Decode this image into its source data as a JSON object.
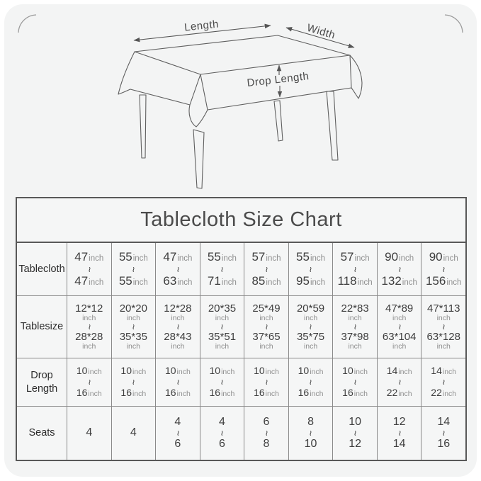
{
  "colors": {
    "page_bg": "#ffffff",
    "card_bg": "#f3f4f4",
    "line": "#5f5f5f",
    "border_dark": "#585858",
    "border_light": "#8a8a8a",
    "text": "#3e3e3e",
    "text_muted": "#8e8e8e",
    "title": "#4b4b4b"
  },
  "diagram": {
    "length_label": "Length",
    "width_label": "Width",
    "drop_length_label": "Drop Length"
  },
  "table": {
    "title": "Tablecloth Size Chart",
    "tilde": "~",
    "rows": [
      {
        "label": "Tablecloth",
        "cells": [
          {
            "top": "47",
            "top_unit": "inch",
            "bottom": "47",
            "bottom_unit": "inch"
          },
          {
            "top": "55",
            "top_unit": "inch",
            "bottom": "55",
            "bottom_unit": "inch"
          },
          {
            "top": "47",
            "top_unit": "inch",
            "bottom": "63",
            "bottom_unit": "inch"
          },
          {
            "top": "55",
            "top_unit": "inch",
            "bottom": "71",
            "bottom_unit": "inch"
          },
          {
            "top": "57",
            "top_unit": "inch",
            "bottom": "85",
            "bottom_unit": "inch"
          },
          {
            "top": "55",
            "top_unit": "inch",
            "bottom": "95",
            "bottom_unit": "inch"
          },
          {
            "top": "57",
            "top_unit": "inch",
            "bottom": "118",
            "bottom_unit": "inch"
          },
          {
            "top": "90",
            "top_unit": "inch",
            "bottom": "132",
            "bottom_unit": "inch"
          },
          {
            "top": "90",
            "top_unit": "inch",
            "bottom": "156",
            "bottom_unit": "inch"
          }
        ]
      },
      {
        "label": "Tablesize",
        "cells": [
          {
            "top": "12*12",
            "top_unit": "inch",
            "bottom": "28*28",
            "bottom_unit": "inch"
          },
          {
            "top": "20*20",
            "top_unit": "inch",
            "bottom": "35*35",
            "bottom_unit": "inch"
          },
          {
            "top": "12*28",
            "top_unit": "inch",
            "bottom": "28*43",
            "bottom_unit": "inch"
          },
          {
            "top": "20*35",
            "top_unit": "inch",
            "bottom": "35*51",
            "bottom_unit": "inch"
          },
          {
            "top": "25*49",
            "top_unit": "inch",
            "bottom": "37*65",
            "bottom_unit": "inch"
          },
          {
            "top": "20*59",
            "top_unit": "inch",
            "bottom": "35*75",
            "bottom_unit": "inch"
          },
          {
            "top": "22*83",
            "top_unit": "inch",
            "bottom": "37*98",
            "bottom_unit": "inch"
          },
          {
            "top": "47*89",
            "top_unit": "inch",
            "bottom": "63*104",
            "bottom_unit": "inch"
          },
          {
            "top": "47*113",
            "top_unit": "inch",
            "bottom": "63*128",
            "bottom_unit": "inch"
          }
        ]
      },
      {
        "label": "Drop Length",
        "cells": [
          {
            "top": "10",
            "top_unit": "inch",
            "bottom": "16",
            "bottom_unit": "inch"
          },
          {
            "top": "10",
            "top_unit": "inch",
            "bottom": "16",
            "bottom_unit": "inch"
          },
          {
            "top": "10",
            "top_unit": "inch",
            "bottom": "16",
            "bottom_unit": "inch"
          },
          {
            "top": "10",
            "top_unit": "inch",
            "bottom": "16",
            "bottom_unit": "inch"
          },
          {
            "top": "10",
            "top_unit": "inch",
            "bottom": "16",
            "bottom_unit": "inch"
          },
          {
            "top": "10",
            "top_unit": "inch",
            "bottom": "16",
            "bottom_unit": "inch"
          },
          {
            "top": "10",
            "top_unit": "inch",
            "bottom": "16",
            "bottom_unit": "inch"
          },
          {
            "top": "14",
            "top_unit": "inch",
            "bottom": "22",
            "bottom_unit": "inch"
          },
          {
            "top": "14",
            "top_unit": "inch",
            "bottom": "22",
            "bottom_unit": "inch"
          }
        ]
      },
      {
        "label": "Seats",
        "cells": [
          {
            "top": "4"
          },
          {
            "top": "4"
          },
          {
            "top": "4",
            "bottom": "6"
          },
          {
            "top": "4",
            "bottom": "6"
          },
          {
            "top": "6",
            "bottom": "8"
          },
          {
            "top": "8",
            "bottom": "10"
          },
          {
            "top": "10",
            "bottom": "12"
          },
          {
            "top": "12",
            "bottom": "14"
          },
          {
            "top": "14",
            "bottom": "16"
          }
        ]
      }
    ]
  },
  "chart_data": {
    "type": "table",
    "title": "Tablecloth Size Chart",
    "row_headers": [
      "Tablecloth",
      "Tablesize",
      "Drop Length",
      "Seats"
    ],
    "rows": {
      "Tablecloth": [
        "47inch~47inch",
        "55inch~55inch",
        "47inch~63inch",
        "55inch~71inch",
        "57inch~85inch",
        "55inch~95inch",
        "57inch~118inch",
        "90inch~132inch",
        "90inch~156inch"
      ],
      "Tablesize": [
        "12*12inch~28*28inch",
        "20*20inch~35*35inch",
        "12*28inch~28*43inch",
        "20*35inch~35*51inch",
        "25*49inch~37*65inch",
        "20*59inch~35*75inch",
        "22*83inch~37*98inch",
        "47*89inch~63*104inch",
        "47*113inch~63*128inch"
      ],
      "Drop Length": [
        "10inch~16inch",
        "10inch~16inch",
        "10inch~16inch",
        "10inch~16inch",
        "10inch~16inch",
        "10inch~16inch",
        "10inch~16inch",
        "14inch~22inch",
        "14inch~22inch"
      ],
      "Seats": [
        "4",
        "4",
        "4~6",
        "4~6",
        "6~8",
        "8~10",
        "10~12",
        "12~14",
        "14~16"
      ]
    }
  }
}
